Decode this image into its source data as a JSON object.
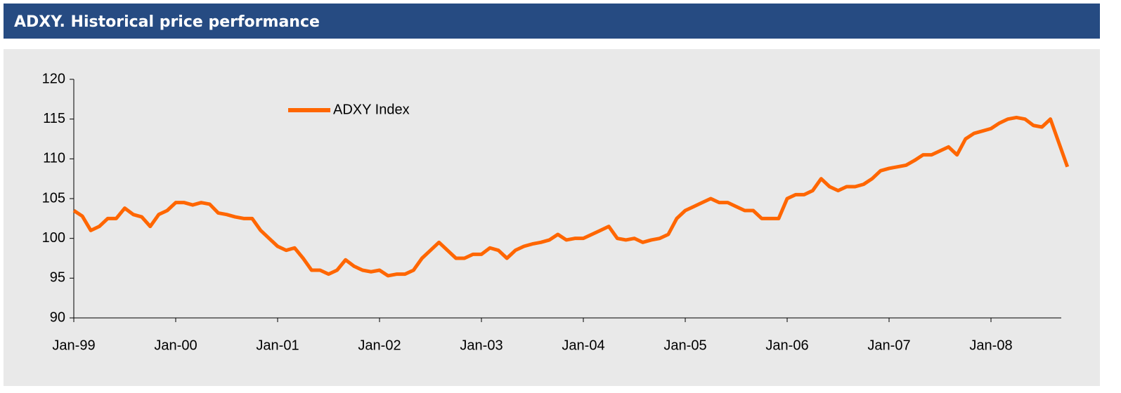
{
  "chart_data": {
    "type": "line",
    "title": "ADXY. Historical price performance",
    "x": [
      "1999-01",
      "1999-02",
      "1999-03",
      "1999-04",
      "1999-05",
      "1999-06",
      "1999-07",
      "1999-08",
      "1999-09",
      "1999-10",
      "1999-11",
      "1999-12",
      "2000-01",
      "2000-02",
      "2000-03",
      "2000-04",
      "2000-05",
      "2000-06",
      "2000-07",
      "2000-08",
      "2000-09",
      "2000-10",
      "2000-11",
      "2000-12",
      "2001-01",
      "2001-02",
      "2001-03",
      "2001-04",
      "2001-05",
      "2001-06",
      "2001-07",
      "2001-08",
      "2001-09",
      "2001-10",
      "2001-11",
      "2001-12",
      "2002-01",
      "2002-02",
      "2002-03",
      "2002-04",
      "2002-05",
      "2002-06",
      "2002-07",
      "2002-08",
      "2002-09",
      "2002-10",
      "2002-11",
      "2002-12",
      "2003-01",
      "2003-02",
      "2003-03",
      "2003-04",
      "2003-05",
      "2003-06",
      "2003-07",
      "2003-08",
      "2003-09",
      "2003-10",
      "2003-11",
      "2003-12",
      "2004-01",
      "2004-02",
      "2004-03",
      "2004-04",
      "2004-05",
      "2004-06",
      "2004-07",
      "2004-08",
      "2004-09",
      "2004-10",
      "2004-11",
      "2004-12",
      "2005-01",
      "2005-02",
      "2005-03",
      "2005-04",
      "2005-05",
      "2005-06",
      "2005-07",
      "2005-08",
      "2005-09",
      "2005-10",
      "2005-11",
      "2005-12",
      "2006-01",
      "2006-02",
      "2006-03",
      "2006-04",
      "2006-05",
      "2006-06",
      "2006-07",
      "2006-08",
      "2006-09",
      "2006-10",
      "2006-11",
      "2006-12",
      "2007-01",
      "2007-02",
      "2007-03",
      "2007-04",
      "2007-05",
      "2007-06",
      "2007-07",
      "2007-08",
      "2007-09",
      "2007-10",
      "2007-11",
      "2007-12",
      "2008-01",
      "2008-02",
      "2008-03",
      "2008-04",
      "2008-05",
      "2008-06",
      "2008-07",
      "2008-08",
      "2008-09",
      "2008-10"
    ],
    "series": [
      {
        "name": "ADXY Index",
        "color": "#ff6600",
        "values": [
          103.5,
          102.8,
          101,
          101.5,
          102.5,
          102.5,
          103.8,
          103,
          102.7,
          101.5,
          103,
          103.5,
          104.5,
          104.5,
          104.2,
          104.5,
          104.3,
          103.2,
          103,
          102.7,
          102.5,
          102.5,
          101,
          100,
          99,
          98.5,
          98.8,
          97.5,
          96,
          96,
          95.5,
          96,
          97.3,
          96.5,
          96,
          95.8,
          96,
          95.3,
          95.5,
          95.5,
          96,
          97.5,
          98.5,
          99.5,
          98.5,
          97.5,
          97.5,
          98,
          98,
          98.8,
          98.5,
          97.5,
          98.5,
          99,
          99.3,
          99.5,
          99.8,
          100.5,
          99.8,
          100,
          100,
          100.5,
          101,
          101.5,
          100,
          99.8,
          100,
          99.5,
          99.8,
          100,
          100.5,
          102.5,
          103.5,
          104,
          104.5,
          105,
          104.5,
          104.5,
          104,
          103.5,
          103.5,
          102.5,
          102.5,
          102.5,
          105,
          105.5,
          105.5,
          106,
          107.5,
          106.5,
          106,
          106.5,
          106.5,
          106.8,
          107.5,
          108.5,
          108.8,
          109,
          109.2,
          109.8,
          110.5,
          110.5,
          111,
          111.5,
          110.5,
          112.5,
          113.2,
          113.5,
          113.8,
          114.5,
          115,
          115.2,
          115,
          114.2,
          114,
          115,
          112,
          109
        ]
      }
    ],
    "ylim": [
      90,
      120
    ],
    "yticks": [
      90,
      95,
      100,
      105,
      110,
      115,
      120
    ],
    "xticks": [
      {
        "value": "1999-01",
        "label": "Jan-99"
      },
      {
        "value": "2000-01",
        "label": "Jan-00"
      },
      {
        "value": "2001-01",
        "label": "Jan-01"
      },
      {
        "value": "2002-01",
        "label": "Jan-02"
      },
      {
        "value": "2003-01",
        "label": "Jan-03"
      },
      {
        "value": "2004-01",
        "label": "Jan-04"
      },
      {
        "value": "2005-01",
        "label": "Jan-05"
      },
      {
        "value": "2006-01",
        "label": "Jan-06"
      },
      {
        "value": "2007-01",
        "label": "Jan-07"
      },
      {
        "value": "2008-01",
        "label": "Jan-08"
      }
    ],
    "grid": false,
    "legend": "upper-left"
  }
}
